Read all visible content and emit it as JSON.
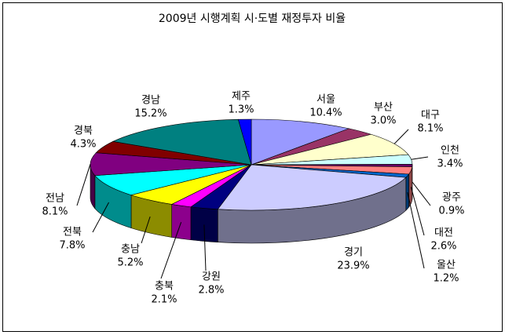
{
  "chart_data": {
    "type": "pie3d",
    "title": "2009년 시행계획 시·도별 재정투자 비율",
    "categories": [
      "서울",
      "부산",
      "대구",
      "인천",
      "광주",
      "대전",
      "울산",
      "경기",
      "강원",
      "충북",
      "충남",
      "전북",
      "전남",
      "경북",
      "경남",
      "제주"
    ],
    "values": [
      10.4,
      3.0,
      8.1,
      3.4,
      0.9,
      2.6,
      1.2,
      23.9,
      2.8,
      2.1,
      5.2,
      7.8,
      8.1,
      4.3,
      15.2,
      1.3
    ],
    "value_labels": [
      "10.4%",
      "3.0%",
      "8.1%",
      "3.4%",
      "0.9%",
      "2.6%",
      "1.2%",
      "23.9%",
      "2.8%",
      "2.1%",
      "5.2%",
      "7.8%",
      "8.1%",
      "4.3%",
      "15.2%",
      "1.3%"
    ],
    "colors": [
      "#9999ff",
      "#993366",
      "#ffffcc",
      "#ccffff",
      "#660066",
      "#ff8080",
      "#0066cc",
      "#ccccff",
      "#000080",
      "#ff00ff",
      "#ffff00",
      "#00ffff",
      "#800080",
      "#800000",
      "#008080",
      "#0000ff"
    ]
  }
}
